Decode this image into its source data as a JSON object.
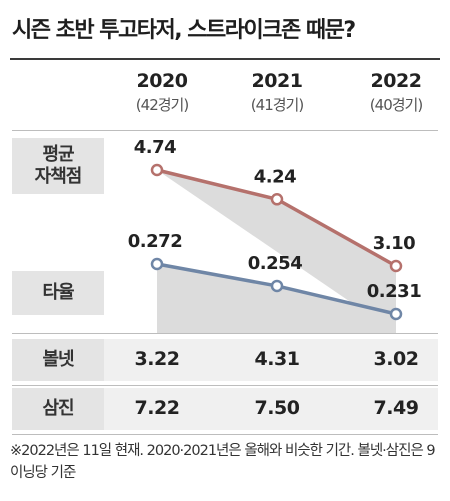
{
  "title": "시즌 초반 투고타저, 스트라이크존 때문?",
  "years": [
    {
      "year": "2020",
      "games": "(42경기)"
    },
    {
      "year": "2021",
      "games": "(41경기)"
    },
    {
      "year": "2022",
      "games": "(40경기)"
    }
  ],
  "chart_data": {
    "type": "line",
    "categories": [
      "2020",
      "2021",
      "2022"
    ],
    "series": [
      {
        "name": "평균자책점",
        "values": [
          4.74,
          4.24,
          3.1
        ],
        "labels": [
          "4.74",
          "4.24",
          "3.10"
        ],
        "color": "#b5716c"
      },
      {
        "name": "타율",
        "values": [
          0.272,
          0.254,
          0.231
        ],
        "labels": [
          "0.272",
          "0.254",
          "0.231"
        ],
        "color": "#6f86a6"
      }
    ],
    "area_fill": "#dcdcdc"
  },
  "rows": [
    {
      "label": "평균자책점",
      "label_lines": [
        "평균",
        "자책점"
      ]
    },
    {
      "label": "타율"
    },
    {
      "label": "볼넷",
      "values": [
        "3.22",
        "4.31",
        "3.02"
      ]
    },
    {
      "label": "삼진",
      "values": [
        "7.22",
        "7.50",
        "7.49"
      ]
    }
  ],
  "footnote": "※2022년은 11일 현재. 2020·2021년은 올해와 비슷한 기간. 볼넷·삼진은 9이닝당 기준"
}
